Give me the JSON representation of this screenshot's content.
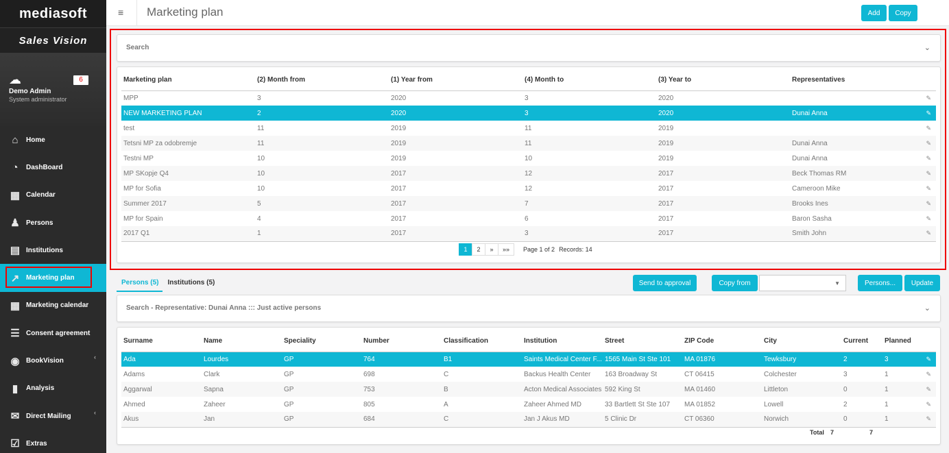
{
  "app": {
    "logo": "mediasoft",
    "brand": "Sales Vision"
  },
  "user": {
    "name": "Demo Admin",
    "role": "System administrator",
    "badge": "6"
  },
  "nav": [
    {
      "label": "Home",
      "icon": "home-icon",
      "glyph": "⌂"
    },
    {
      "label": "DashBoard",
      "icon": "pie-chart-icon",
      "glyph": "◔"
    },
    {
      "label": "Calendar",
      "icon": "calendar-icon",
      "glyph": "▦"
    },
    {
      "label": "Persons",
      "icon": "person-icon",
      "glyph": "♟"
    },
    {
      "label": "Institutions",
      "icon": "building-icon",
      "glyph": "▤"
    },
    {
      "label": "Marketing plan",
      "icon": "line-chart-icon",
      "glyph": "↗"
    },
    {
      "label": "Marketing calendar",
      "icon": "calendar-icon",
      "glyph": "▦"
    },
    {
      "label": "Consent agreement",
      "icon": "list-icon",
      "glyph": "☰"
    },
    {
      "label": "BookVision",
      "icon": "eye-icon",
      "glyph": "◉"
    },
    {
      "label": "Analysis",
      "icon": "file-icon",
      "glyph": "▮"
    },
    {
      "label": "Direct Mailing",
      "icon": "mail-icon",
      "glyph": "✉"
    },
    {
      "label": "Extras",
      "icon": "checkbox-icon",
      "glyph": "☑"
    }
  ],
  "header": {
    "title": "Marketing plan",
    "add_label": "Add",
    "copy_label": "Copy"
  },
  "search1": {
    "title": "Search"
  },
  "plans": {
    "columns": [
      "Marketing plan",
      "(2) Month from",
      "(1) Year from",
      "(4) Month to",
      "(3) Year to",
      "Representatives"
    ],
    "rows": [
      [
        "MPP",
        "3",
        "2020",
        "3",
        "2020",
        ""
      ],
      [
        "NEW MARKETING PLAN",
        "2",
        "2020",
        "3",
        "2020",
        "Dunai Anna"
      ],
      [
        "test",
        "11",
        "2019",
        "11",
        "2019",
        ""
      ],
      [
        "Tetsni MP za odobremje",
        "11",
        "2019",
        "11",
        "2019",
        "Dunai Anna"
      ],
      [
        "Testni MP",
        "10",
        "2019",
        "10",
        "2019",
        "Dunai Anna"
      ],
      [
        "MP SKopje Q4",
        "10",
        "2017",
        "12",
        "2017",
        "Beck Thomas RM"
      ],
      [
        "MP for Sofia",
        "10",
        "2017",
        "12",
        "2017",
        "Cameroon Mike"
      ],
      [
        "Summer 2017",
        "5",
        "2017",
        "7",
        "2017",
        "Brooks Ines"
      ],
      [
        "MP for Spain",
        "4",
        "2017",
        "6",
        "2017",
        "Baron Sasha"
      ],
      [
        "2017 Q1",
        "1",
        "2017",
        "3",
        "2017",
        "Smith John"
      ]
    ],
    "selected_row": 1,
    "pager": {
      "pages": [
        "1",
        "2",
        "»",
        "»»"
      ],
      "current": "1",
      "info": "Page 1 of 2",
      "records": "Records: 14"
    }
  },
  "tabs": [
    {
      "label": "Persons (5)",
      "active": true
    },
    {
      "label": "Institutions (5)",
      "active": false
    }
  ],
  "actions": {
    "approval": "Send to approval",
    "copy_from": "Copy from",
    "select_value": "",
    "persons": "Persons...",
    "update": "Update"
  },
  "search2": {
    "title": "Search - Representative: Dunai Anna ::: Just active persons"
  },
  "persons": {
    "columns": [
      "Surname",
      "Name",
      "Speciality",
      "Number",
      "Classification",
      "Institution",
      "Street",
      "ZIP Code",
      "City",
      "Current",
      "Planned"
    ],
    "rows": [
      [
        "Ada",
        "Lourdes",
        "GP",
        "764",
        "B1",
        "Saints Medical Center F...",
        "1565 Main St Ste 101",
        "MA 01876",
        "Tewksbury",
        "2",
        "3"
      ],
      [
        "Adams",
        "Clark",
        "GP",
        "698",
        "C",
        "Backus Health Center",
        "163 Broadway St",
        "CT 06415",
        "Colchester",
        "3",
        "1"
      ],
      [
        "Aggarwal",
        "Sapna",
        "GP",
        "753",
        "B",
        "Acton Medical Associates",
        "592 King St",
        "MA 01460",
        "Littleton",
        "0",
        "1"
      ],
      [
        "Ahmed",
        "Zaheer",
        "GP",
        "805",
        "A",
        "Zaheer Ahmed MD",
        "33 Bartlett St Ste 107",
        "MA 01852",
        "Lowell",
        "2",
        "1"
      ],
      [
        "Akus",
        "Jan",
        "GP",
        "684",
        "C",
        "Jan J Akus MD",
        "5 Clinic Dr",
        "CT 06360",
        "Norwich",
        "0",
        "1"
      ]
    ],
    "selected_row": 0,
    "total_label": "Total",
    "total_current": "7",
    "total_planned": "7"
  },
  "colors": {
    "accent": "#0fb7d4",
    "highlight": "#e00000",
    "sidebar": "#2b2b2b"
  }
}
